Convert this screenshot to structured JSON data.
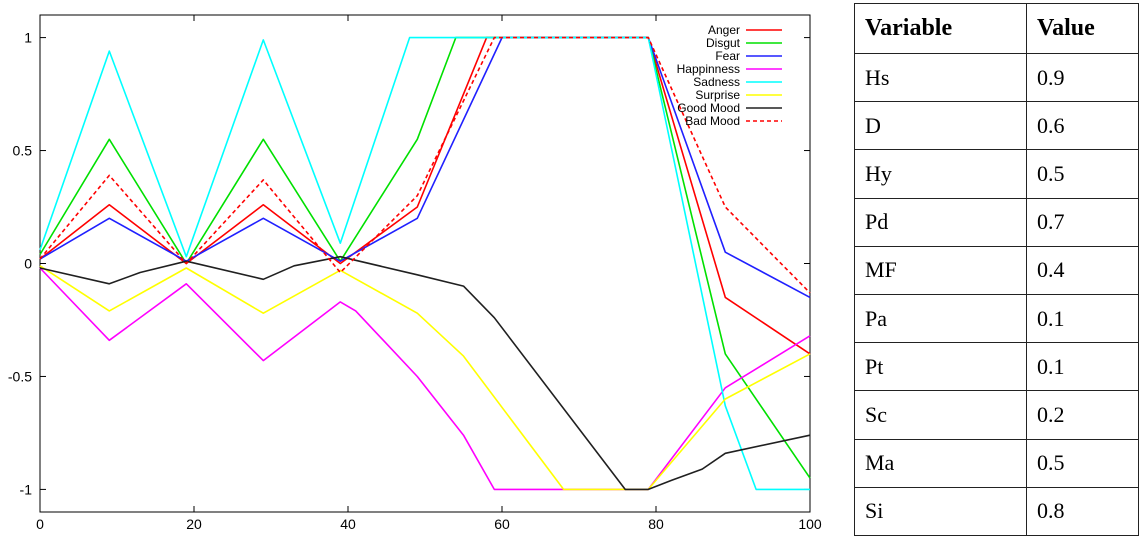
{
  "chart_data": {
    "type": "line",
    "title": "",
    "xlabel": "",
    "ylabel": "",
    "xlim": [
      0,
      100
    ],
    "ylim": [
      -1.1,
      1.1
    ],
    "xticks": [
      0,
      20,
      40,
      60,
      80,
      100
    ],
    "yticks": [
      -1,
      -0.5,
      0,
      0.5,
      1
    ],
    "xtick_labels": [
      "0",
      "20",
      "40",
      "60",
      "80",
      "100"
    ],
    "ytick_labels": [
      "-1",
      "-0.5",
      "0",
      "0.5",
      "1"
    ],
    "grid": false,
    "legend_position": "top-right",
    "series": [
      {
        "name": "Anger",
        "color": "#ff0000",
        "dash": "solid",
        "points": [
          [
            0,
            0.02
          ],
          [
            9,
            0.26
          ],
          [
            19,
            0.0
          ],
          [
            29,
            0.26
          ],
          [
            39,
            0.0
          ],
          [
            49,
            0.25
          ],
          [
            58,
            1.0
          ],
          [
            79,
            1.0
          ],
          [
            89,
            -0.15
          ],
          [
            100,
            -0.4
          ]
        ]
      },
      {
        "name": "Disgut",
        "color": "#00e000",
        "dash": "solid",
        "points": [
          [
            0,
            0.04
          ],
          [
            9,
            0.55
          ],
          [
            19,
            0.0
          ],
          [
            29,
            0.55
          ],
          [
            39,
            0.01
          ],
          [
            49,
            0.55
          ],
          [
            54,
            1.0
          ],
          [
            79,
            1.0
          ],
          [
            89,
            -0.4
          ],
          [
            100,
            -0.95
          ]
        ]
      },
      {
        "name": "Fear",
        "color": "#2020ff",
        "dash": "solid",
        "points": [
          [
            0,
            0.02
          ],
          [
            9,
            0.2
          ],
          [
            19,
            0.01
          ],
          [
            29,
            0.2
          ],
          [
            39,
            0.01
          ],
          [
            49,
            0.2
          ],
          [
            60,
            1.0
          ],
          [
            79,
            1.0
          ],
          [
            89,
            0.05
          ],
          [
            100,
            -0.15
          ]
        ]
      },
      {
        "name": "Happinness",
        "color": "#ff00ff",
        "dash": "solid",
        "points": [
          [
            0,
            -0.02
          ],
          [
            9,
            -0.34
          ],
          [
            19,
            -0.09
          ],
          [
            29,
            -0.43
          ],
          [
            39,
            -0.17
          ],
          [
            41,
            -0.21
          ],
          [
            49,
            -0.5
          ],
          [
            55,
            -0.76
          ],
          [
            59,
            -1.0
          ],
          [
            68,
            -1.0
          ],
          [
            79,
            -1.0
          ],
          [
            89,
            -0.55
          ],
          [
            100,
            -0.32
          ]
        ]
      },
      {
        "name": "Sadness",
        "color": "#00ffff",
        "dash": "solid",
        "points": [
          [
            0,
            0.06
          ],
          [
            9,
            0.94
          ],
          [
            19,
            0.03
          ],
          [
            29,
            0.99
          ],
          [
            39,
            0.09
          ],
          [
            48,
            1.0
          ],
          [
            79,
            1.0
          ],
          [
            89,
            -0.63
          ],
          [
            93,
            -1.0
          ],
          [
            100,
            -1.0
          ]
        ]
      },
      {
        "name": "Surprise",
        "color": "#ffff00",
        "dash": "solid",
        "points": [
          [
            0,
            -0.01
          ],
          [
            9,
            -0.21
          ],
          [
            19,
            -0.02
          ],
          [
            29,
            -0.22
          ],
          [
            39,
            -0.03
          ],
          [
            49,
            -0.22
          ],
          [
            55,
            -0.41
          ],
          [
            68,
            -1.0
          ],
          [
            79,
            -1.0
          ],
          [
            89,
            -0.6
          ],
          [
            100,
            -0.4
          ]
        ]
      },
      {
        "name": "Good Mood",
        "color": "#202020",
        "dash": "solid",
        "points": [
          [
            0,
            -0.02
          ],
          [
            9,
            -0.09
          ],
          [
            13,
            -0.04
          ],
          [
            19,
            0.01
          ],
          [
            29,
            -0.07
          ],
          [
            33,
            -0.01
          ],
          [
            39,
            0.03
          ],
          [
            49,
            -0.05
          ],
          [
            55,
            -0.1
          ],
          [
            59,
            -0.24
          ],
          [
            76,
            -1.0
          ],
          [
            79,
            -1.0
          ],
          [
            82,
            -0.96
          ],
          [
            86,
            -0.91
          ],
          [
            89,
            -0.84
          ],
          [
            100,
            -0.76
          ]
        ]
      },
      {
        "name": "Bad Mood",
        "color": "#ff0000",
        "dash": "dashed",
        "points": [
          [
            0,
            0.02
          ],
          [
            9,
            0.39
          ],
          [
            19,
            0.0
          ],
          [
            29,
            0.37
          ],
          [
            39,
            -0.04
          ],
          [
            49,
            0.3
          ],
          [
            59,
            1.0
          ],
          [
            79,
            1.0
          ],
          [
            89,
            0.25
          ],
          [
            100,
            -0.13
          ]
        ]
      }
    ]
  },
  "table": {
    "headers": [
      "Variable",
      "Value"
    ],
    "rows": [
      [
        "Hs",
        "0.9"
      ],
      [
        "D",
        "0.6"
      ],
      [
        "Hy",
        "0.5"
      ],
      [
        "Pd",
        "0.7"
      ],
      [
        "MF",
        "0.4"
      ],
      [
        "Pa",
        "0.1"
      ],
      [
        "Pt",
        "0.1"
      ],
      [
        "Sc",
        "0.2"
      ],
      [
        "Ma",
        "0.5"
      ],
      [
        "Si",
        "0.8"
      ]
    ]
  }
}
